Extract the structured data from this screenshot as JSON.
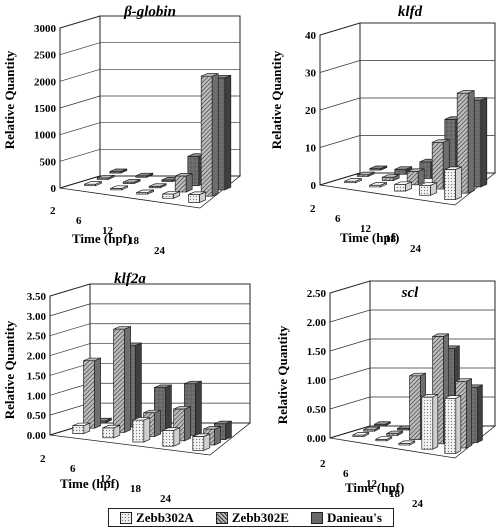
{
  "legend": {
    "items": [
      {
        "label": "Zebb302A",
        "pattern": "dots",
        "color": "#e8e8e8"
      },
      {
        "label": "Zebb302E",
        "pattern": "hatch",
        "color": "#8c8c8c"
      },
      {
        "label": "Danieau's",
        "pattern": "solid",
        "color": "#5c5c5c"
      }
    ]
  },
  "chart_data": [
    {
      "type": "bar",
      "title": "β-globin",
      "ylabel": "Relative Quantity",
      "xlabel": "Time (hpf)",
      "ylim": [
        0,
        3000
      ],
      "yticks": [
        "0",
        "500",
        "1000",
        "1500",
        "2000",
        "2500",
        "3000"
      ],
      "categories": [
        "2",
        "6",
        "12",
        "18",
        "24"
      ],
      "series": [
        {
          "name": "Zebb302A",
          "values": [
            2,
            3,
            10,
            80,
            150
          ]
        },
        {
          "name": "Zebb302E",
          "values": [
            4,
            6,
            20,
            300,
            2250
          ]
        },
        {
          "name": "Danieau's",
          "values": [
            3,
            5,
            15,
            550,
            2100
          ]
        }
      ]
    },
    {
      "type": "bar",
      "title": "klfd",
      "ylabel": "Relative Quantity",
      "xlabel": "Time (hpf)",
      "ylim": [
        0,
        45
      ],
      "yticks": [
        "0",
        "10",
        "20",
        "30",
        "40"
      ],
      "categories": [
        "2",
        "6",
        "12",
        "18",
        "24"
      ],
      "series": [
        {
          "name": "Zebb302A",
          "values": [
            0.2,
            0.5,
            2,
            3,
            9
          ]
        },
        {
          "name": "Zebb302E",
          "values": [
            0.5,
            1,
            4,
            14,
            30
          ]
        },
        {
          "name": "Danieau's",
          "values": [
            0.3,
            1.5,
            5,
            19,
            26
          ]
        }
      ]
    },
    {
      "type": "bar",
      "title": "klf2a",
      "ylabel": "Relative Quantity",
      "xlabel": "Time (hpf)",
      "ylim": [
        0,
        3.5
      ],
      "yticks": [
        "0.00",
        "0.50",
        "1.00",
        "1.50",
        "2.00",
        "2.50",
        "3.00",
        "3.50"
      ],
      "categories": [
        "2",
        "6",
        "12",
        "18",
        "24"
      ],
      "series": [
        {
          "name": "Zebb302A",
          "values": [
            0.2,
            0.25,
            0.55,
            0.4,
            0.35
          ]
        },
        {
          "name": "Zebb302E",
          "values": [
            1.7,
            2.6,
            0.6,
            0.8,
            0.4
          ]
        },
        {
          "name": "Danieau's",
          "values": [
            0.05,
            2.05,
            1.1,
            1.3,
            0.4
          ]
        }
      ]
    },
    {
      "type": "bar",
      "title": "scl",
      "ylabel": "Relative Quantity",
      "xlabel": "Time (hpf)",
      "ylim": [
        0,
        2.5
      ],
      "yticks": [
        "0.00",
        "0.50",
        "1.00",
        "1.50",
        "2.00",
        "2.50"
      ],
      "categories": [
        "2",
        "6",
        "12",
        "18",
        "24"
      ],
      "series": [
        {
          "name": "Zebb302A",
          "values": [
            0.01,
            0.01,
            0.02,
            0.9,
            0.95
          ]
        },
        {
          "name": "Zebb302E",
          "values": [
            0.02,
            0.03,
            1.1,
            1.85,
            1.15
          ]
        },
        {
          "name": "Danieau's",
          "values": [
            0.01,
            0.02,
            0.05,
            1.55,
            0.95
          ]
        }
      ]
    }
  ]
}
